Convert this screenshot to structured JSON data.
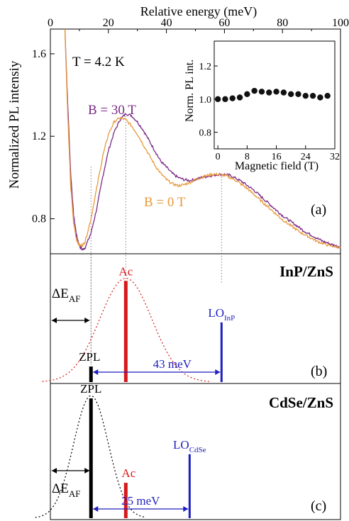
{
  "chart_data": [
    {
      "panel": "(a)",
      "type": "line",
      "top_axis": {
        "label": "Relative energy (meV)",
        "range": [
          0,
          100
        ],
        "ticks": [
          "0",
          "20",
          "40",
          "60",
          "80",
          "100"
        ]
      },
      "ylabel": "Normalized PL intensiy",
      "ylim": [
        0.63,
        1.72
      ],
      "yticks": [
        "0.8",
        "1.2",
        "1.6"
      ],
      "temperature_label": "T = 4.2 K",
      "series": [
        {
          "name": "B = 30 T",
          "color": "#7a2a86",
          "x": [
            5,
            6,
            7,
            8,
            9,
            10,
            11,
            12,
            14,
            16,
            18,
            20,
            22,
            24,
            26,
            28,
            30,
            32,
            34,
            36,
            38,
            40,
            42,
            44,
            46,
            48,
            50,
            52,
            54,
            56,
            58,
            60,
            62,
            64,
            66,
            68,
            70,
            72,
            74,
            76,
            78,
            80,
            82,
            84,
            86,
            88,
            90,
            92,
            94,
            96,
            98,
            100
          ],
          "y": [
            1.72,
            1.35,
            1.02,
            0.82,
            0.72,
            0.67,
            0.65,
            0.66,
            0.73,
            0.85,
            1.0,
            1.13,
            1.22,
            1.28,
            1.31,
            1.3,
            1.27,
            1.23,
            1.18,
            1.13,
            1.08,
            1.05,
            1.02,
            1.0,
            0.99,
            0.985,
            0.99,
            1.0,
            1.005,
            1.01,
            1.015,
            1.015,
            1.01,
            0.995,
            0.98,
            0.96,
            0.94,
            0.915,
            0.89,
            0.865,
            0.84,
            0.815,
            0.795,
            0.775,
            0.755,
            0.735,
            0.72,
            0.705,
            0.69,
            0.68,
            0.67,
            0.665
          ]
        },
        {
          "name": "B = 0 T",
          "color": "#e8993a",
          "x": [
            5,
            6,
            7,
            8,
            9,
            10,
            11,
            12,
            14,
            16,
            18,
            20,
            22,
            24,
            26,
            28,
            30,
            32,
            34,
            36,
            38,
            40,
            42,
            44,
            46,
            48,
            50,
            52,
            54,
            56,
            58,
            60,
            62,
            64,
            66,
            68,
            70,
            72,
            74,
            76,
            78,
            80,
            82,
            84,
            86,
            88,
            90,
            92,
            94,
            96,
            98,
            100
          ],
          "y": [
            1.72,
            1.3,
            0.96,
            0.78,
            0.7,
            0.67,
            0.67,
            0.69,
            0.8,
            0.95,
            1.1,
            1.21,
            1.27,
            1.29,
            1.28,
            1.25,
            1.21,
            1.16,
            1.11,
            1.06,
            1.02,
            0.99,
            0.97,
            0.96,
            0.965,
            0.975,
            0.99,
            1.0,
            1.01,
            1.015,
            1.015,
            1.01,
            1.0,
            0.985,
            0.965,
            0.945,
            0.92,
            0.895,
            0.87,
            0.845,
            0.82,
            0.795,
            0.775,
            0.755,
            0.735,
            0.72,
            0.705,
            0.69,
            0.68,
            0.67,
            0.665,
            0.66
          ]
        }
      ],
      "guides_meV": [
        14,
        26,
        59
      ],
      "label_b30": "B = 30 T",
      "label_b0": "B = 0 T"
    },
    {
      "panel": "(a) inset",
      "type": "scatter",
      "xlabel": "Magnetic field (T)",
      "ylabel": "Norm. PL int.",
      "xlim": [
        -1,
        32
      ],
      "ylim": [
        0.7,
        1.35
      ],
      "xticks": [
        "0",
        "8",
        "16",
        "24",
        "32"
      ],
      "yticks": [
        "0.8",
        "1.0",
        "1.2"
      ],
      "x": [
        0,
        2,
        4,
        6,
        8,
        10,
        12,
        14,
        16,
        18,
        20,
        22,
        24,
        26,
        28,
        30
      ],
      "y": [
        1.0,
        1.0,
        1.005,
        1.01,
        1.03,
        1.05,
        1.045,
        1.04,
        1.045,
        1.04,
        1.03,
        1.03,
        1.02,
        1.02,
        1.01,
        1.02
      ]
    },
    {
      "panel": "(b)",
      "type": "diagram",
      "title": "InP/ZnS",
      "lines_meV": [
        {
          "label": "ZPL",
          "x": 14,
          "height": 0.12,
          "color": "#000000"
        },
        {
          "label": "Ac",
          "x": 26,
          "height": 0.78,
          "color": "#d7191c"
        },
        {
          "label": "LO",
          "sub": "InP",
          "x": 59,
          "height": 0.46,
          "color": "#1f1fbf"
        }
      ],
      "gaussian": {
        "center": 26,
        "sigma": 9,
        "color": "#d7191c"
      },
      "delta_label": "ΔE",
      "delta_sub": "AF",
      "spacing_label": "43 meV"
    },
    {
      "panel": "(c)",
      "type": "diagram",
      "title": "CdSe/ZnS",
      "lines_meV": [
        {
          "label": "ZPL",
          "x": 14,
          "height": 0.88,
          "color": "#000000"
        },
        {
          "label": "Ac",
          "x": 26,
          "height": 0.26,
          "color": "#d7191c"
        },
        {
          "label": "LO",
          "sub": "CdSe",
          "x": 48,
          "height": 0.47,
          "color": "#1f1fbf"
        }
      ],
      "gaussian": {
        "center": 14,
        "sigma": 6,
        "color": "#000000"
      },
      "delta_label": "ΔE",
      "delta_sub": "AF",
      "spacing_label": "25 meV"
    }
  ],
  "panel_labels": {
    "a": "(a)",
    "b": "(b)",
    "c": "(c)"
  }
}
